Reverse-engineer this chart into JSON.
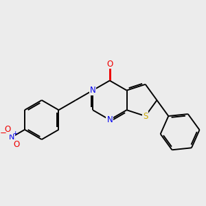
{
  "bg_color": "#ececec",
  "bond_color": "#000000",
  "N_color": "#0000ee",
  "O_color": "#ee0000",
  "S_color": "#ccaa00",
  "lw": 1.4,
  "fs": 8.5,
  "fig_size": [
    3.0,
    3.0
  ],
  "dpi": 100,
  "xlim": [
    -3.5,
    3.5
  ],
  "ylim": [
    -2.2,
    2.2
  ]
}
